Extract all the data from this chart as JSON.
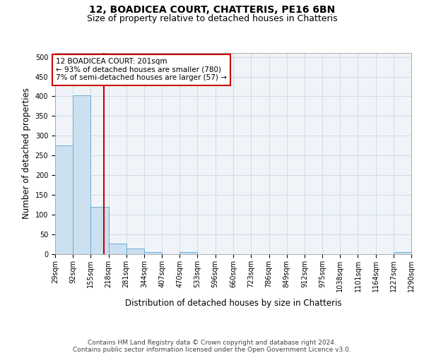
{
  "title_line1": "12, BOADICEA COURT, CHATTERIS, PE16 6BN",
  "title_line2": "Size of property relative to detached houses in Chatteris",
  "xlabel": "Distribution of detached houses by size in Chatteris",
  "ylabel": "Number of detached properties",
  "footer_line1": "Contains HM Land Registry data © Crown copyright and database right 2024.",
  "footer_line2": "Contains public sector information licensed under the Open Government Licence v3.0.",
  "bar_edges": [
    29,
    92,
    155,
    218,
    281,
    344,
    407,
    470,
    533,
    596,
    660,
    723,
    786,
    849,
    912,
    975,
    1038,
    1101,
    1164,
    1227,
    1290
  ],
  "bar_heights": [
    275,
    403,
    120,
    27,
    14,
    5,
    0,
    5,
    0,
    0,
    0,
    0,
    0,
    0,
    0,
    0,
    0,
    0,
    0,
    5,
    0
  ],
  "bar_color": "#cce0f0",
  "bar_edge_color": "#6aaed6",
  "property_size": 201,
  "vline_color": "#cc0000",
  "annotation_text": "12 BOADICEA COURT: 201sqm\n← 93% of detached houses are smaller (780)\n7% of semi-detached houses are larger (57) →",
  "annotation_box_color": "#cc0000",
  "annotation_text_color": "#000000",
  "ylim": [
    0,
    510
  ],
  "yticks": [
    0,
    50,
    100,
    150,
    200,
    250,
    300,
    350,
    400,
    450,
    500
  ],
  "grid_color": "#c8d8e8",
  "bg_color": "#f0f4f8",
  "title_fontsize": 10,
  "subtitle_fontsize": 9,
  "label_fontsize": 8.5,
  "tick_fontsize": 7,
  "footer_fontsize": 6.5,
  "annotation_fontsize": 7.5
}
